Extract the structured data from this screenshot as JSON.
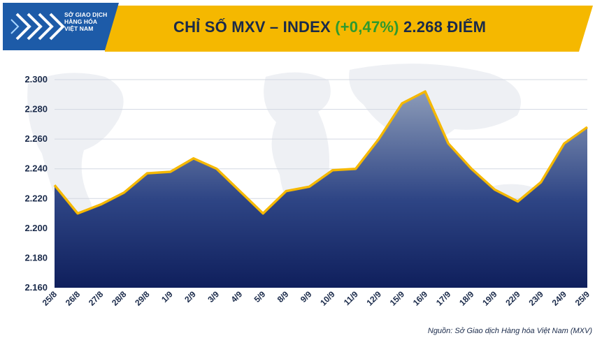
{
  "header": {
    "logo_lines": [
      "SỞ GIAO DỊCH",
      "HÀNG HÓA",
      "VIỆT NAM"
    ],
    "title_main": "CHỈ SỐ MXV – INDEX ",
    "title_change": "(+0,47%)",
    "title_value": " 2.268 ĐIỂM"
  },
  "source": "Nguồn: Sở Giao dịch Hàng hóa Việt Nam (MXV)",
  "colors": {
    "header_yellow": "#f5b800",
    "logo_blue": "#1d5ba8",
    "line": "#f5b800",
    "fill_top": "#8c9bb8",
    "fill_bottom": "#0f1f5c",
    "change_green": "#2e9a2e",
    "text_dark": "#1a2a4a"
  },
  "chart_data": {
    "type": "area",
    "title": "",
    "xlabel": "",
    "ylabel": "",
    "ylim": [
      2160,
      2300
    ],
    "yticks": [
      2160,
      2180,
      2200,
      2220,
      2240,
      2260,
      2280,
      2300
    ],
    "ytick_labels": [
      "2.160",
      "2.180",
      "2.200",
      "2.220",
      "2.240",
      "2.260",
      "2.280",
      "2.300"
    ],
    "grid": true,
    "legend": "none",
    "categories": [
      "25/8",
      "26/8",
      "27/8",
      "28/8",
      "29/8",
      "1/9",
      "2/9",
      "3/9",
      "4/9",
      "5/9",
      "8/9",
      "9/9",
      "10/9",
      "11/9",
      "12/9",
      "15/9",
      "16/9",
      "17/9",
      "18/9",
      "19/9",
      "22/9",
      "23/9",
      "24/9",
      "25/9"
    ],
    "values": [
      2229,
      2210,
      2216,
      2224,
      2237,
      2238,
      2247,
      2240,
      2225,
      2210,
      2225,
      2228,
      2239,
      2240,
      2260,
      2284,
      2292,
      2257,
      2240,
      2226,
      2218,
      2231,
      2257,
      2268
    ]
  }
}
